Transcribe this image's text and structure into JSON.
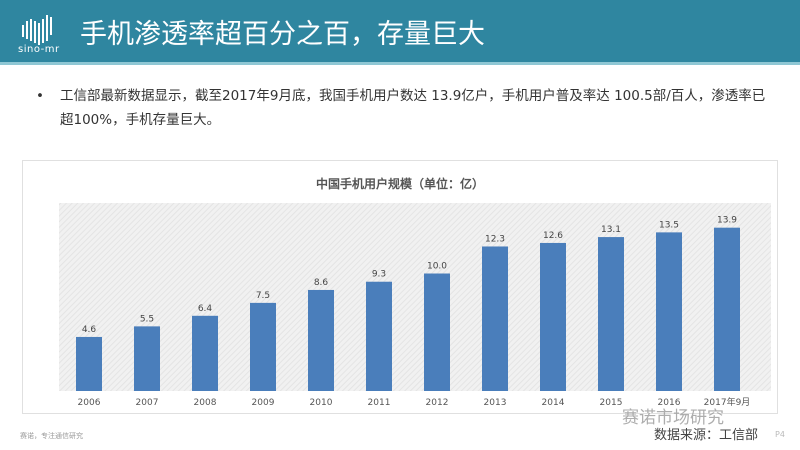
{
  "header": {
    "logo_text": "sino-mr",
    "title": "手机渗透率超百分之百，存量巨大"
  },
  "bullet": {
    "marker": "•",
    "text": "工信部最新数据显示，截至2017年9月底，我国手机用户数达 13.9亿户，手机用户普及率达 100.5部/百人，渗透率已超100%，手机存量巨大。"
  },
  "chart_data": {
    "type": "bar",
    "title": "中国手机用户规模（单位：亿）",
    "categories": [
      "2006",
      "2007",
      "2008",
      "2009",
      "2010",
      "2011",
      "2012",
      "2013",
      "2014",
      "2015",
      "2016",
      "2017年9月"
    ],
    "values": [
      4.6,
      5.5,
      6.4,
      7.5,
      8.6,
      9.3,
      10.0,
      12.3,
      12.6,
      13.1,
      13.5,
      13.9
    ],
    "data_labels": [
      "4.6",
      "5.5",
      "6.4",
      "7.5",
      "8.6",
      "9.3",
      "10.0",
      "12.3",
      "12.6",
      "13.1",
      "13.5",
      "13.9"
    ],
    "ylim": [
      0,
      16
    ],
    "grid": false,
    "bar_color": "#4a7ebb",
    "background": "hatched-gray"
  },
  "watermark": "赛诺市场研究",
  "source": "数据来源：工信部",
  "page": "P4",
  "footer": "赛诺，专注通信研究"
}
